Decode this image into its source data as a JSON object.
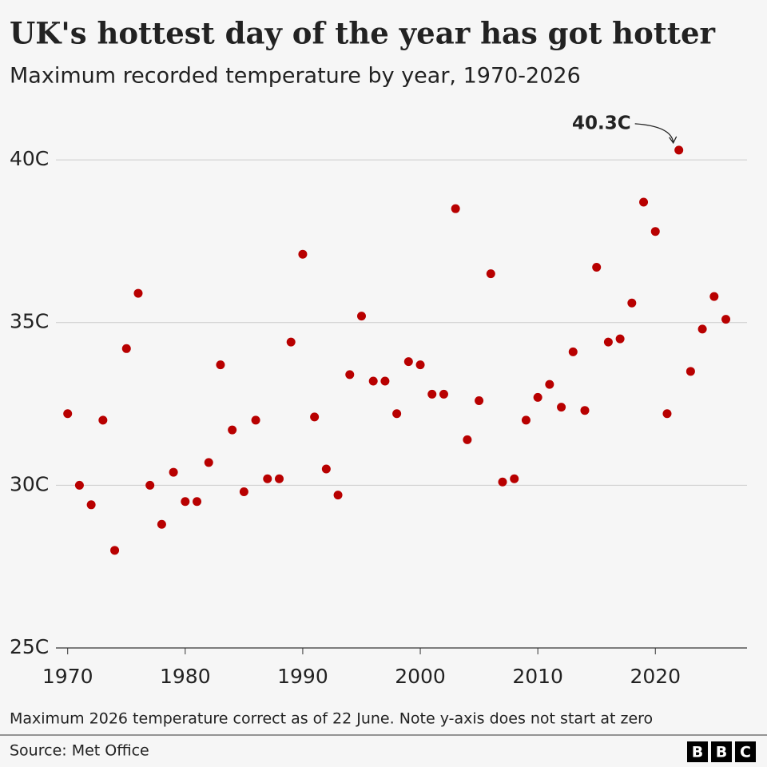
{
  "chart_data": {
    "type": "scatter",
    "title": "UK's hottest day of the year has got hotter",
    "subtitle": "Maximum recorded temperature by year, 1970-2026",
    "x": [
      1970,
      1971,
      1972,
      1973,
      1974,
      1975,
      1976,
      1977,
      1978,
      1979,
      1980,
      1981,
      1982,
      1983,
      1984,
      1985,
      1986,
      1987,
      1988,
      1989,
      1990,
      1991,
      1992,
      1993,
      1994,
      1995,
      1996,
      1997,
      1998,
      1999,
      2000,
      2001,
      2002,
      2003,
      2004,
      2005,
      2006,
      2007,
      2008,
      2009,
      2010,
      2011,
      2012,
      2013,
      2014,
      2015,
      2016,
      2017,
      2018,
      2019,
      2020,
      2021,
      2022,
      2023,
      2024,
      2025,
      2026
    ],
    "series": [
      {
        "name": "Maximum temperature",
        "color": "#b80000",
        "values": [
          32.2,
          30.0,
          29.4,
          32.0,
          28.0,
          34.2,
          35.9,
          30.0,
          28.8,
          30.4,
          29.5,
          29.5,
          30.7,
          33.7,
          31.7,
          29.8,
          32.0,
          30.2,
          30.2,
          34.4,
          37.1,
          32.1,
          30.5,
          29.7,
          33.4,
          35.2,
          33.2,
          33.2,
          32.2,
          33.8,
          33.7,
          32.8,
          32.8,
          38.5,
          31.4,
          32.6,
          36.5,
          30.1,
          30.2,
          32.0,
          32.7,
          33.1,
          32.4,
          34.1,
          32.3,
          36.7,
          34.4,
          34.5,
          35.6,
          38.7,
          37.8,
          32.2,
          40.3,
          33.5,
          34.8,
          35.8,
          35.1
        ]
      }
    ],
    "xlim": [
      1969,
      2027.8
    ],
    "xticks": [
      1970,
      1980,
      1990,
      2000,
      2010,
      2020
    ],
    "ylim": [
      25,
      41.5
    ],
    "yticks": [
      {
        "value": 25,
        "label": "25C"
      },
      {
        "value": 30,
        "label": "30C"
      },
      {
        "value": 35,
        "label": "35C"
      },
      {
        "value": 40,
        "label": "40C"
      }
    ],
    "grid": true,
    "annotations": [
      {
        "text": "40.3C",
        "x": 2022,
        "y": 40.3
      }
    ],
    "note": "Maximum 2026 temperature correct as of 22 June. Note y-axis does not start at zero",
    "source": "Source: Met Office",
    "logo": [
      "B",
      "B",
      "C"
    ]
  }
}
